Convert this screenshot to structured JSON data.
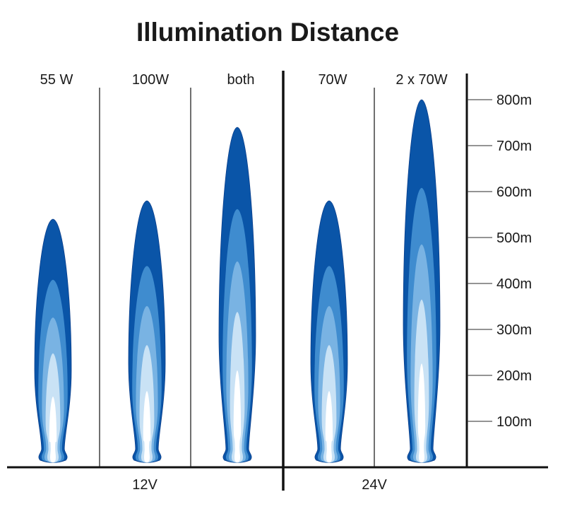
{
  "chart_data": {
    "type": "bar",
    "title": "Illumination Distance",
    "unit": "m",
    "categories": [
      "55 W",
      "100W",
      "both",
      "70W",
      "2 x 70W"
    ],
    "groups": [
      {
        "label": "12V",
        "categories": [
          "55 W",
          "100W",
          "both"
        ]
      },
      {
        "label": "24V",
        "categories": [
          "70W",
          "2 x 70W"
        ]
      }
    ],
    "values": [
      540,
      580,
      740,
      580,
      800
    ],
    "inner_layers": [
      [
        408,
        326,
        248,
        154
      ],
      [
        438,
        351,
        266,
        166
      ],
      [
        562,
        448,
        338,
        211
      ],
      [
        438,
        351,
        266,
        166
      ],
      [
        608,
        485,
        365,
        226
      ]
    ],
    "ylim": [
      0,
      800
    ],
    "yticks": [
      100,
      200,
      300,
      400,
      500,
      600,
      700,
      800
    ],
    "ytick_labels": [
      "100m",
      "200m",
      "300m",
      "400m",
      "500m",
      "600m",
      "700m",
      "800m"
    ],
    "axis_position": "right",
    "grid": false,
    "colors": [
      "#0a55a8",
      "#3f8ccf",
      "#79b3e3",
      "#c9e2f5",
      "#ffffff"
    ]
  }
}
